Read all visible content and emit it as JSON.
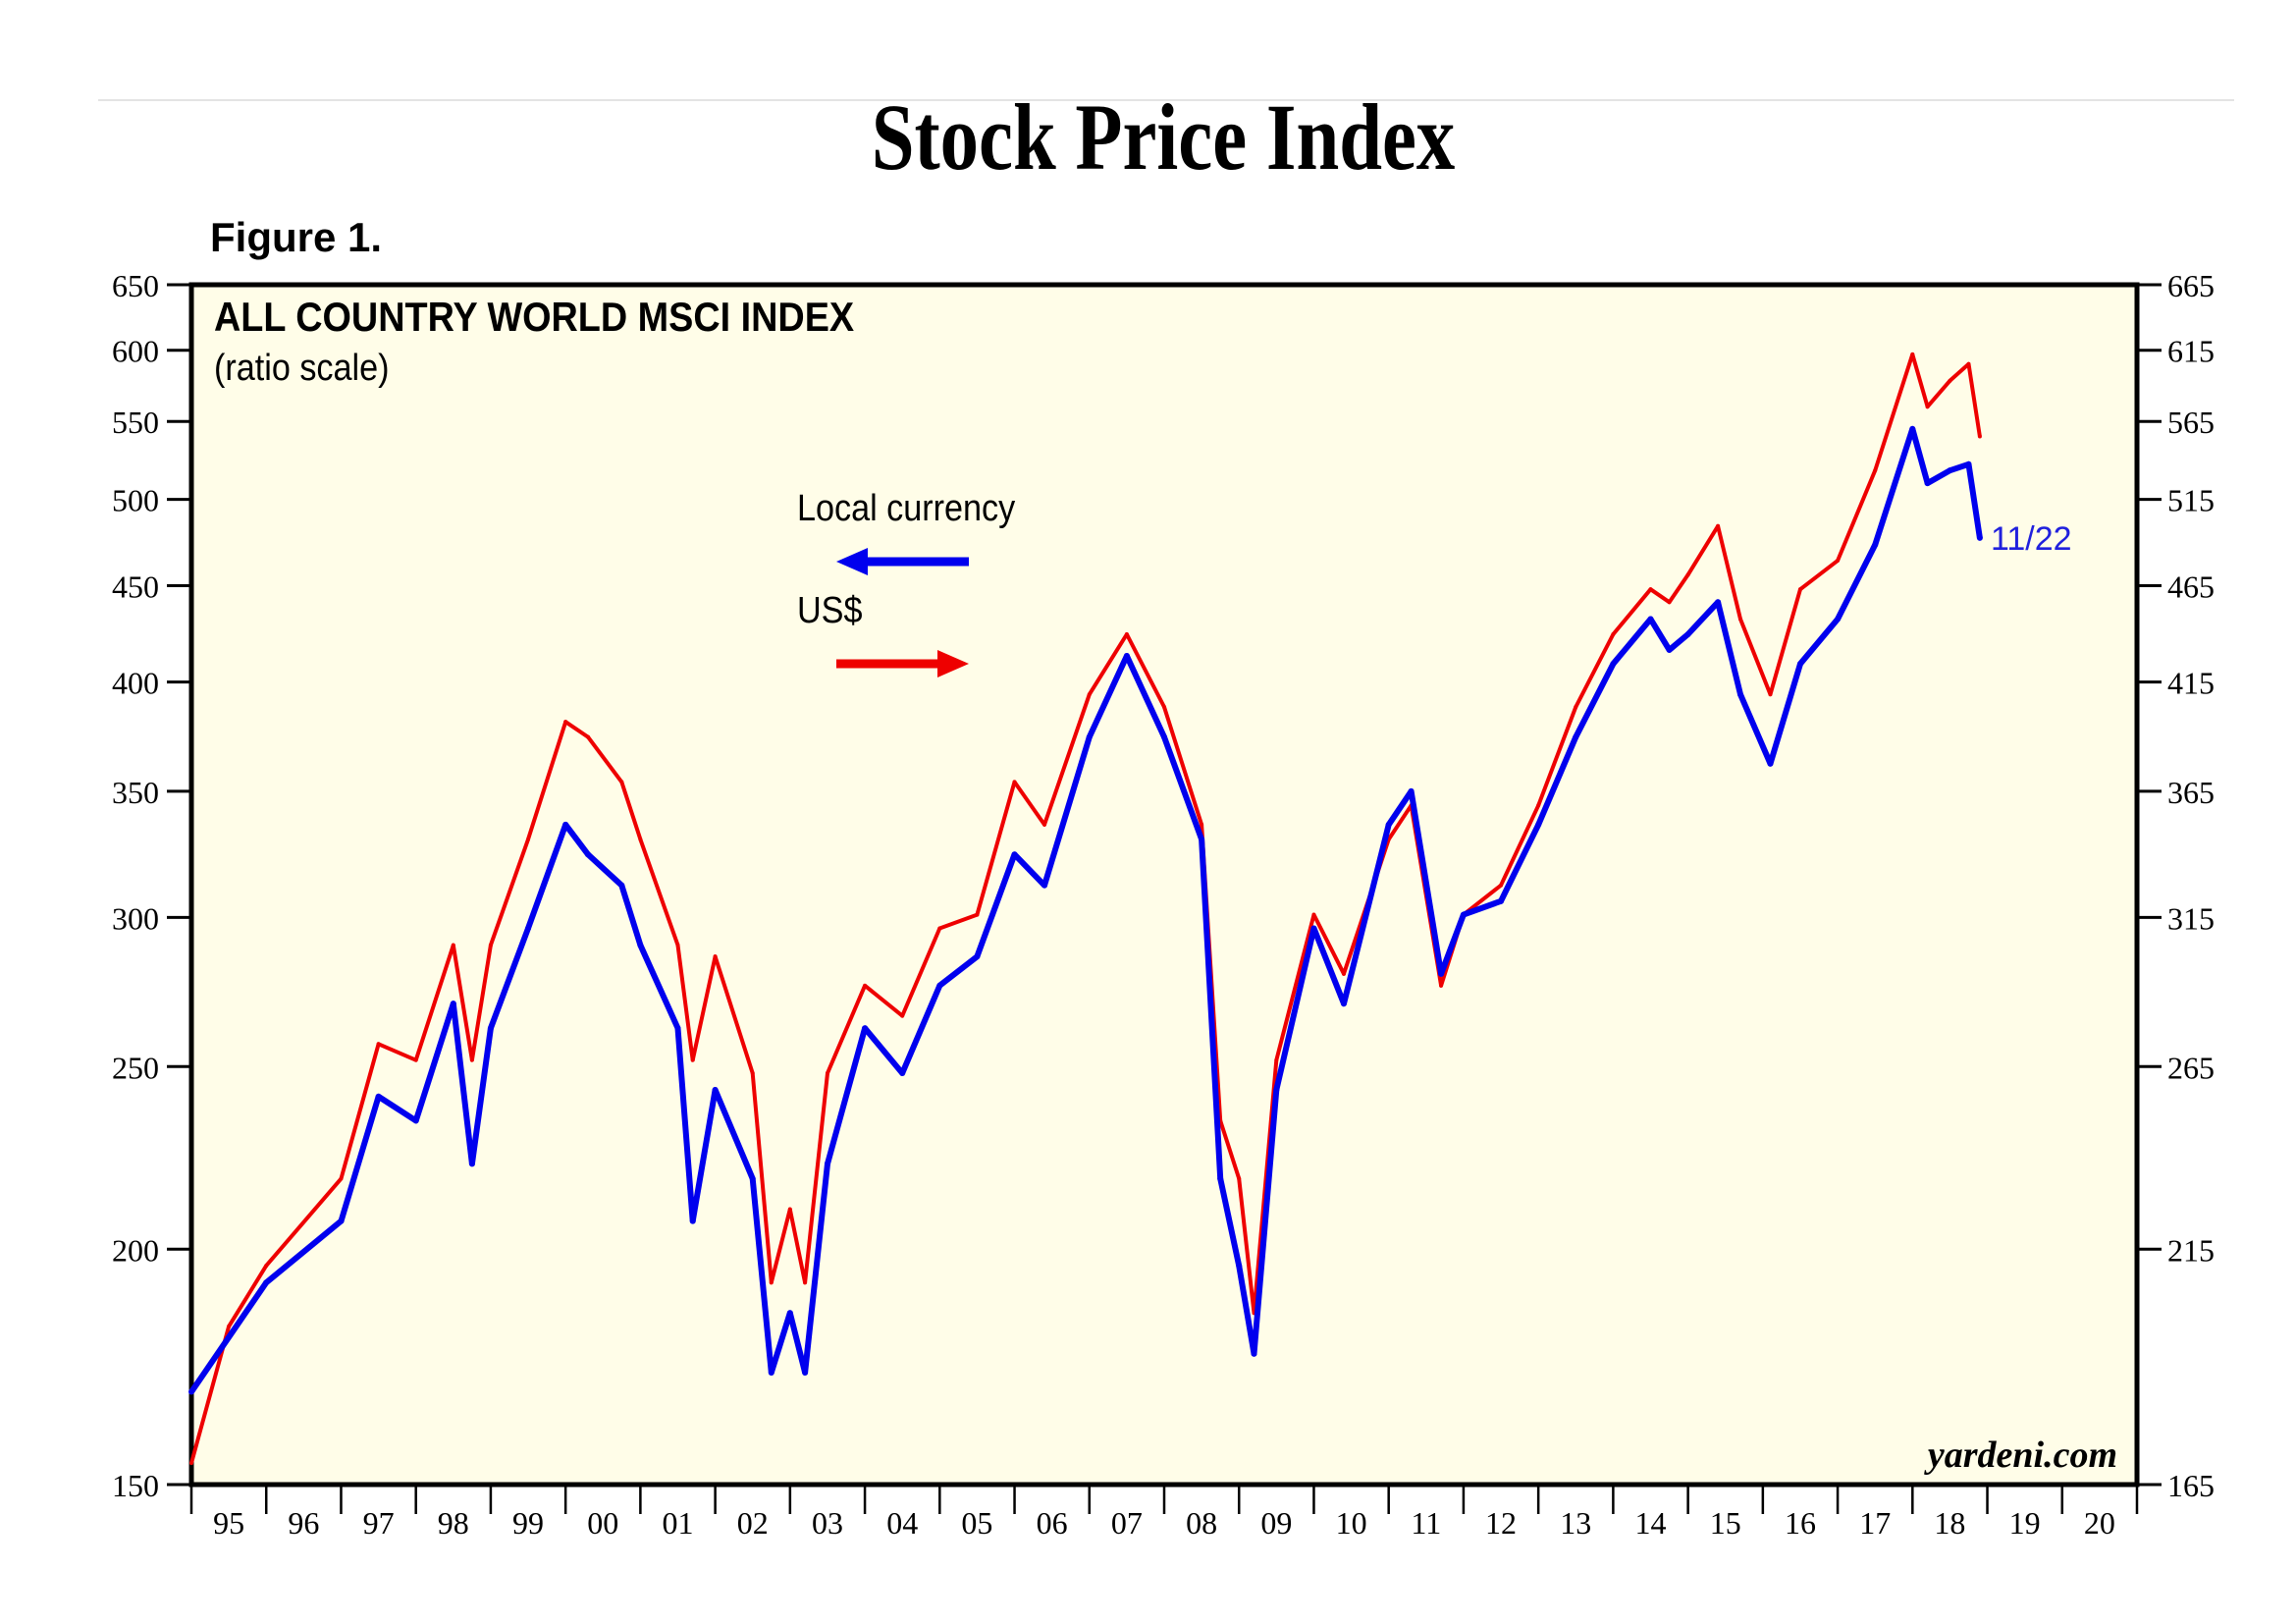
{
  "header": {
    "title": "Stock Price Index",
    "figure_label": "Figure 1."
  },
  "chart_data": {
    "type": "line",
    "title": "ALL COUNTRY WORLD MSCI INDEX",
    "subtitle": "(ratio scale)",
    "y_scale": "log",
    "ylim": [
      150,
      650
    ],
    "left_ticks": [
      650,
      600,
      550,
      500,
      450,
      400,
      350,
      300,
      250,
      200,
      150
    ],
    "right_ticks": [
      665,
      615,
      565,
      515,
      465,
      415,
      365,
      315,
      265,
      215,
      165
    ],
    "x_tick_labels": [
      "95",
      "96",
      "97",
      "98",
      "99",
      "00",
      "01",
      "02",
      "03",
      "04",
      "05",
      "06",
      "07",
      "08",
      "09",
      "10",
      "11",
      "12",
      "13",
      "14",
      "15",
      "16",
      "17",
      "18",
      "19",
      "20"
    ],
    "xlim": [
      1995,
      2021
    ],
    "grid": false,
    "legend": {
      "local_label": "Local currency",
      "usd_label": "US$",
      "local_axis": "left",
      "usd_axis": "right"
    },
    "end_label": "11/22",
    "source": "yardeni.com",
    "colors": {
      "local": "#0000ee",
      "usd": "#ee0000",
      "background": "#fffde8"
    },
    "series": [
      {
        "name": "Local currency",
        "x": [
          1995.0,
          1996.0,
          1997.0,
          1997.5,
          1998.0,
          1998.5,
          1998.75,
          1999.0,
          1999.5,
          2000.0,
          2000.3,
          2000.75,
          2001.0,
          2001.5,
          2001.7,
          2002.0,
          2002.5,
          2002.75,
          2003.0,
          2003.2,
          2003.5,
          2004.0,
          2004.5,
          2005.0,
          2005.5,
          2006.0,
          2006.4,
          2007.0,
          2007.5,
          2008.0,
          2008.5,
          2008.75,
          2009.0,
          2009.2,
          2009.5,
          2010.0,
          2010.4,
          2011.0,
          2011.3,
          2011.7,
          2012.0,
          2012.5,
          2013.0,
          2013.5,
          2014.0,
          2014.5,
          2014.75,
          2015.0,
          2015.4,
          2015.7,
          2016.1,
          2016.5,
          2017.0,
          2017.5,
          2018.0,
          2018.2,
          2018.5,
          2018.75,
          2018.9
        ],
        "values": [
          168,
          192,
          207,
          241,
          234,
          270,
          222,
          262,
          296,
          336,
          324,
          312,
          290,
          262,
          207,
          243,
          218,
          172,
          185,
          172,
          222,
          262,
          248,
          276,
          286,
          324,
          312,
          374,
          413,
          374,
          330,
          218,
          196,
          176,
          243,
          296,
          270,
          336,
          350,
          280,
          301,
          306,
          336,
          374,
          409,
          432,
          416,
          424,
          441,
          394,
          362,
          409,
          432,
          473,
          545,
          510,
          518,
          522,
          477
        ]
      },
      {
        "name": "US$",
        "x": [
          1995.0,
          1995.5,
          1996.0,
          1997.0,
          1997.5,
          1998.0,
          1998.5,
          1998.75,
          1999.0,
          1999.5,
          2000.0,
          2000.3,
          2000.75,
          2001.0,
          2001.5,
          2001.7,
          2002.0,
          2002.5,
          2002.75,
          2003.0,
          2003.2,
          2003.5,
          2004.0,
          2004.5,
          2005.0,
          2005.5,
          2006.0,
          2006.4,
          2007.0,
          2007.5,
          2008.0,
          2008.5,
          2008.75,
          2009.0,
          2009.2,
          2009.5,
          2010.0,
          2010.4,
          2011.0,
          2011.3,
          2011.7,
          2012.0,
          2012.5,
          2013.0,
          2013.5,
          2014.0,
          2014.5,
          2014.75,
          2015.0,
          2015.4,
          2015.7,
          2016.1,
          2016.5,
          2017.0,
          2017.5,
          2018.0,
          2018.2,
          2018.5,
          2018.75,
          2018.9
        ],
        "values": [
          154,
          182,
          196,
          218,
          257,
          252,
          290,
          252,
          290,
          330,
          381,
          374,
          354,
          330,
          290,
          252,
          286,
          248,
          192,
          210,
          192,
          248,
          276,
          266,
          296,
          301,
          354,
          336,
          394,
          424,
          388,
          336,
          234,
          218,
          185,
          252,
          301,
          280,
          330,
          344,
          276,
          301,
          312,
          344,
          388,
          424,
          448,
          441,
          456,
          484,
          432,
          394,
          448,
          464,
          518,
          597,
          560,
          578,
          590,
          540
        ]
      }
    ]
  }
}
